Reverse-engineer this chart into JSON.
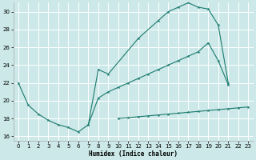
{
  "title": "",
  "xlabel": "Humidex (Indice chaleur)",
  "ylabel": "",
  "bg_color": "#cce8e8",
  "grid_color": "#ffffff",
  "line_color": "#1a7a6e",
  "xlim": [
    -0.5,
    23.5
  ],
  "ylim": [
    15.5,
    31.0
  ],
  "xticks": [
    0,
    1,
    2,
    3,
    4,
    5,
    6,
    7,
    8,
    9,
    10,
    11,
    12,
    13,
    14,
    15,
    16,
    17,
    18,
    19,
    20,
    21,
    22,
    23
  ],
  "yticks": [
    16,
    18,
    20,
    22,
    24,
    26,
    28,
    30
  ],
  "s1_x": [
    0,
    1,
    2,
    3,
    4,
    5,
    6,
    7,
    8,
    9,
    10,
    11,
    12,
    13,
    14,
    15,
    16,
    17,
    18,
    19,
    20,
    21
  ],
  "s1_y": [
    22.0,
    19.5,
    18.5,
    17.8,
    17.3,
    17.0,
    16.5,
    17.3,
    20.3,
    21.0,
    21.5,
    22.0,
    22.5,
    23.0,
    23.5,
    24.0,
    24.5,
    25.0,
    25.5,
    26.5,
    24.5,
    21.8
  ],
  "s2_x": [
    10,
    11,
    12,
    13,
    14,
    15,
    16,
    17,
    18,
    19,
    20,
    21,
    22,
    23
  ],
  "s2_y": [
    18.0,
    18.1,
    18.2,
    18.3,
    18.4,
    18.5,
    18.6,
    18.7,
    18.8,
    18.9,
    19.0,
    19.1,
    19.2,
    19.3
  ],
  "s3_x": [
    7,
    8,
    9,
    12,
    14,
    15,
    16,
    17,
    18,
    19,
    20,
    21
  ],
  "s3_y": [
    17.3,
    23.5,
    23.0,
    27.0,
    29.0,
    30.0,
    30.5,
    31.0,
    30.5,
    30.3,
    28.5,
    22.0
  ]
}
